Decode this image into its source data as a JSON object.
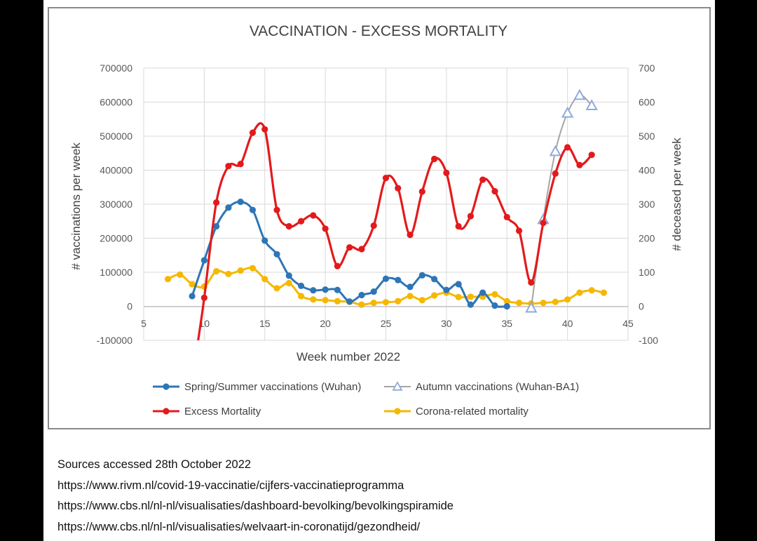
{
  "chart_data": {
    "type": "line",
    "title": "VACCINATION - EXCESS MORTALITY",
    "xlabel": "Week number 2022",
    "ylabel_left": "# vaccinations per week",
    "ylabel_right": "# deceased per week",
    "xlim": [
      5,
      45
    ],
    "x_ticks": [
      "5",
      "10",
      "15",
      "20",
      "25",
      "30",
      "35",
      "40",
      "45"
    ],
    "ylim_left": [
      -100000,
      700000
    ],
    "y_left_ticks": [
      "-100000",
      "0",
      "100000",
      "200000",
      "300000",
      "400000",
      "500000",
      "600000",
      "700000"
    ],
    "ylim_right": [
      -100,
      700
    ],
    "y_right_ticks": [
      "-100",
      "0",
      "100",
      "200",
      "300",
      "400",
      "500",
      "600",
      "700"
    ],
    "grid": true,
    "legend_position": "bottom",
    "series": [
      {
        "name": "Spring/Summer vaccinations (Wuhan)",
        "axis": "left",
        "color": "#2e75b6",
        "marker": "circle",
        "x": [
          9,
          10,
          11,
          12,
          13,
          14,
          15,
          16,
          17,
          18,
          19,
          20,
          21,
          22,
          23,
          24,
          25,
          26,
          27,
          28,
          29,
          30,
          31,
          32,
          33,
          34,
          35
        ],
        "y": [
          30000,
          135000,
          235000,
          290000,
          307000,
          283000,
          193000,
          153000,
          90000,
          60000,
          47000,
          49000,
          48000,
          14000,
          33000,
          43000,
          81000,
          77000,
          57000,
          91000,
          80000,
          48000,
          65000,
          5000,
          40000,
          2000,
          0
        ]
      },
      {
        "name": "Autumn vaccinations (Wuhan-BA1)",
        "axis": "left",
        "color": "#8faadc",
        "marker": "triangle",
        "x": [
          37,
          38,
          39,
          40,
          41,
          42
        ],
        "y": [
          -5000,
          255000,
          455000,
          568000,
          620000,
          590000
        ]
      },
      {
        "name": "Excess Mortality",
        "axis": "right",
        "color": "#e31a1c",
        "marker": "circle",
        "x": [
          9.5,
          10,
          11,
          12,
          13,
          14,
          15,
          16,
          17,
          18,
          19,
          20,
          21,
          22,
          23,
          24,
          25,
          26,
          27,
          28,
          29,
          30,
          31,
          32,
          33,
          34,
          35,
          36,
          37,
          38,
          39,
          40,
          41,
          42
        ],
        "y": [
          -100,
          25,
          305,
          412,
          418,
          510,
          520,
          283,
          235,
          250,
          267,
          228,
          118,
          173,
          168,
          237,
          377,
          347,
          210,
          337,
          433,
          392,
          235,
          265,
          372,
          338,
          262,
          222,
          70,
          245,
          390,
          467,
          415,
          445
        ]
      },
      {
        "name": "Corona-related mortality",
        "axis": "right",
        "color": "#f5b800",
        "marker": "circle",
        "x": [
          7,
          8,
          9,
          10,
          11,
          12,
          13,
          14,
          15,
          16,
          17,
          18,
          19,
          20,
          21,
          22,
          23,
          24,
          25,
          26,
          27,
          28,
          29,
          30,
          31,
          32,
          33,
          34,
          35,
          36,
          37,
          38,
          39,
          40,
          41,
          42,
          43
        ],
        "y": [
          80,
          93,
          65,
          58,
          103,
          95,
          105,
          112,
          80,
          53,
          68,
          30,
          20,
          18,
          15,
          13,
          5,
          10,
          12,
          15,
          30,
          18,
          32,
          40,
          27,
          28,
          28,
          35,
          15,
          10,
          8,
          10,
          13,
          20,
          40,
          47,
          40
        ]
      }
    ]
  },
  "sources": {
    "heading": "Sources accessed 28th  October 2022",
    "links": [
      "https://www.rivm.nl/covid-19-vaccinatie/cijfers-vaccinatieprogramma",
      "https://www.cbs.nl/nl-nl/visualisaties/dashboard-bevolking/bevolkingspiramide",
      "https://www.cbs.nl/nl-nl/visualisaties/welvaart-in-coronatijd/gezondheid/"
    ]
  }
}
